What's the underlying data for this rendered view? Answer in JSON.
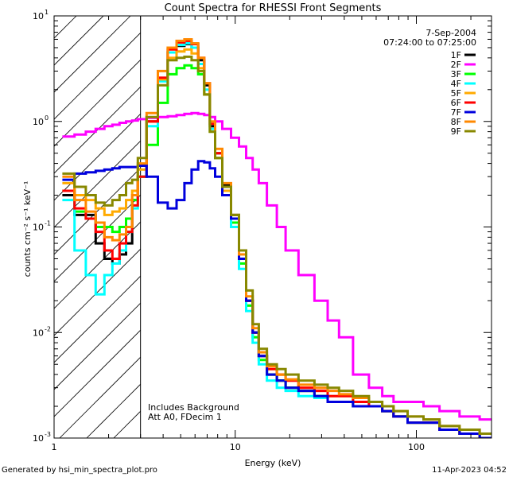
{
  "chart_data": {
    "type": "line",
    "title": "Count Spectra for RHESSI Front Segments",
    "date": "7-Sep-2004",
    "time_range": "07:24:00 to 07:25:00",
    "xlabel": "Energy (keV)",
    "ylabel": "counts cm⁻² s⁻¹ keV⁻¹",
    "xscale": "log",
    "yscale": "log",
    "xlim": [
      1,
      260
    ],
    "ylim": [
      0.001,
      10
    ],
    "x_tick_labels": [
      {
        "value": 1,
        "label": "1"
      },
      {
        "value": 10,
        "label": "10"
      },
      {
        "value": 100,
        "label": "100"
      }
    ],
    "y_tick_labels": [
      {
        "value": 10,
        "label": "10",
        "exp": "1"
      },
      {
        "value": 1,
        "label": "10",
        "exp": "0"
      },
      {
        "value": 0.1,
        "label": "10",
        "exp": "-1"
      },
      {
        "value": 0.01,
        "label": "10",
        "exp": "-2"
      },
      {
        "value": 0.001,
        "label": "10",
        "exp": "-3"
      }
    ],
    "hatched_region_keV": [
      1,
      3
    ],
    "annotations": [
      "Includes Background",
      "Att A0, FDecim 1"
    ],
    "footer_left": "Generated by hsi_min_spectra_plot.pro",
    "footer_right": "11-Apr-2023 04:52",
    "energy_keV": [
      1.2,
      1.4,
      1.6,
      1.8,
      2.0,
      2.2,
      2.4,
      2.6,
      2.8,
      3.0,
      3.5,
      4.0,
      4.5,
      5.0,
      5.5,
      6.0,
      6.5,
      7.0,
      7.5,
      8.0,
      9.0,
      10.0,
      11.0,
      12.0,
      13.0,
      14.0,
      16.0,
      18.0,
      20.0,
      25.0,
      30.0,
      35.0,
      40.0,
      50.0,
      60.0,
      70.0,
      80.0,
      100.0,
      120.0,
      150.0,
      200.0,
      250.0
    ],
    "series": [
      {
        "name": "1F",
        "color": "#000000",
        "values": [
          0.2,
          0.13,
          0.13,
          0.07,
          0.05,
          0.045,
          0.055,
          0.07,
          0.18,
          0.3,
          1.0,
          2.5,
          4.5,
          5.2,
          5.4,
          5.0,
          3.8,
          2.2,
          0.9,
          0.5,
          0.25,
          0.13,
          0.05,
          0.02,
          0.01,
          0.006,
          0.004,
          0.0035,
          0.003,
          0.0028,
          0.0025,
          0.0022,
          0.0022,
          0.002,
          0.002,
          0.0018,
          0.0016,
          0.0014,
          0.0014,
          0.0012,
          0.0011,
          0.001
        ]
      },
      {
        "name": "2F",
        "color": "#ff00ff",
        "values": [
          0.72,
          0.75,
          0.8,
          0.85,
          0.9,
          0.93,
          0.97,
          1.0,
          1.02,
          1.05,
          1.08,
          1.1,
          1.12,
          1.15,
          1.18,
          1.2,
          1.18,
          1.15,
          1.1,
          1.0,
          0.85,
          0.7,
          0.58,
          0.45,
          0.35,
          0.26,
          0.16,
          0.1,
          0.06,
          0.035,
          0.02,
          0.013,
          0.009,
          0.004,
          0.003,
          0.0025,
          0.0022,
          0.0022,
          0.002,
          0.0018,
          0.0016,
          0.0015
        ]
      },
      {
        "name": "3F",
        "color": "#00ff00",
        "values": [
          0.22,
          0.14,
          0.12,
          0.1,
          0.1,
          0.09,
          0.1,
          0.12,
          0.18,
          0.3,
          0.6,
          1.5,
          2.8,
          3.2,
          3.4,
          3.2,
          2.8,
          1.8,
          0.8,
          0.45,
          0.22,
          0.11,
          0.045,
          0.018,
          0.009,
          0.0055,
          0.004,
          0.0035,
          0.003,
          0.0028,
          0.0025,
          0.0022,
          0.0022,
          0.002,
          0.002,
          0.0018,
          0.0016,
          0.0014,
          0.0014,
          0.0012,
          0.0011,
          0.001
        ]
      },
      {
        "name": "4F",
        "color": "#00ffff",
        "values": [
          0.18,
          0.06,
          0.035,
          0.023,
          0.035,
          0.045,
          0.06,
          0.09,
          0.15,
          0.3,
          0.9,
          2.4,
          4.5,
          5.3,
          5.5,
          5.0,
          3.5,
          2.0,
          0.85,
          0.45,
          0.2,
          0.1,
          0.04,
          0.016,
          0.008,
          0.005,
          0.0035,
          0.003,
          0.0028,
          0.0025,
          0.0024,
          0.0022,
          0.0022,
          0.002,
          0.002,
          0.0018,
          0.0016,
          0.0014,
          0.0014,
          0.0012,
          0.0011,
          0.001
        ]
      },
      {
        "name": "5F",
        "color": "#ffaa00",
        "values": [
          0.26,
          0.2,
          0.18,
          0.15,
          0.13,
          0.14,
          0.15,
          0.18,
          0.22,
          0.35,
          1.0,
          2.5,
          4.0,
          4.6,
          4.8,
          4.4,
          3.2,
          1.8,
          0.8,
          0.45,
          0.22,
          0.12,
          0.05,
          0.02,
          0.01,
          0.006,
          0.0045,
          0.004,
          0.0035,
          0.003,
          0.0028,
          0.0025,
          0.0025,
          0.0022,
          0.002,
          0.0018,
          0.0016,
          0.0014,
          0.0014,
          0.0012,
          0.0011,
          0.001
        ]
      },
      {
        "name": "6F",
        "color": "#ff0000",
        "values": [
          0.22,
          0.15,
          0.12,
          0.09,
          0.06,
          0.05,
          0.07,
          0.09,
          0.16,
          0.3,
          1.0,
          2.6,
          4.8,
          5.6,
          5.8,
          5.4,
          4.0,
          2.3,
          0.95,
          0.5,
          0.24,
          0.12,
          0.05,
          0.02,
          0.01,
          0.006,
          0.0045,
          0.004,
          0.0035,
          0.003,
          0.0028,
          0.0025,
          0.0025,
          0.0022,
          0.002,
          0.0018,
          0.0016,
          0.0014,
          0.0014,
          0.0012,
          0.0011,
          0.001
        ]
      },
      {
        "name": "7F",
        "color": "#0000dd",
        "values": [
          0.28,
          0.32,
          0.33,
          0.34,
          0.35,
          0.36,
          0.37,
          0.37,
          0.37,
          0.38,
          0.3,
          0.17,
          0.15,
          0.18,
          0.26,
          0.35,
          0.42,
          0.41,
          0.36,
          0.3,
          0.2,
          0.12,
          0.05,
          0.02,
          0.01,
          0.006,
          0.004,
          0.0035,
          0.003,
          0.0028,
          0.0025,
          0.0022,
          0.0022,
          0.002,
          0.002,
          0.0018,
          0.0016,
          0.0014,
          0.0014,
          0.0012,
          0.0011,
          0.001
        ]
      },
      {
        "name": "8F",
        "color": "#ff8800",
        "values": [
          0.3,
          0.18,
          0.14,
          0.11,
          0.08,
          0.075,
          0.085,
          0.1,
          0.2,
          0.4,
          1.2,
          3.0,
          5.0,
          5.8,
          6.0,
          5.5,
          4.0,
          2.3,
          1.0,
          0.55,
          0.26,
          0.13,
          0.055,
          0.022,
          0.011,
          0.0065,
          0.0048,
          0.004,
          0.0036,
          0.0032,
          0.003,
          0.0028,
          0.0026,
          0.0024,
          0.0022,
          0.002,
          0.0018,
          0.0016,
          0.0015,
          0.0013,
          0.0012,
          0.0011
        ]
      },
      {
        "name": "9F",
        "color": "#888800",
        "values": [
          0.32,
          0.24,
          0.2,
          0.17,
          0.16,
          0.18,
          0.2,
          0.26,
          0.28,
          0.45,
          1.1,
          2.2,
          3.8,
          4.0,
          4.1,
          3.8,
          3.0,
          1.8,
          0.8,
          0.45,
          0.24,
          0.13,
          0.06,
          0.025,
          0.012,
          0.007,
          0.005,
          0.0045,
          0.004,
          0.0035,
          0.0032,
          0.003,
          0.0028,
          0.0025,
          0.0022,
          0.002,
          0.0018,
          0.0016,
          0.0015,
          0.0013,
          0.0012,
          0.0011
        ]
      }
    ]
  }
}
